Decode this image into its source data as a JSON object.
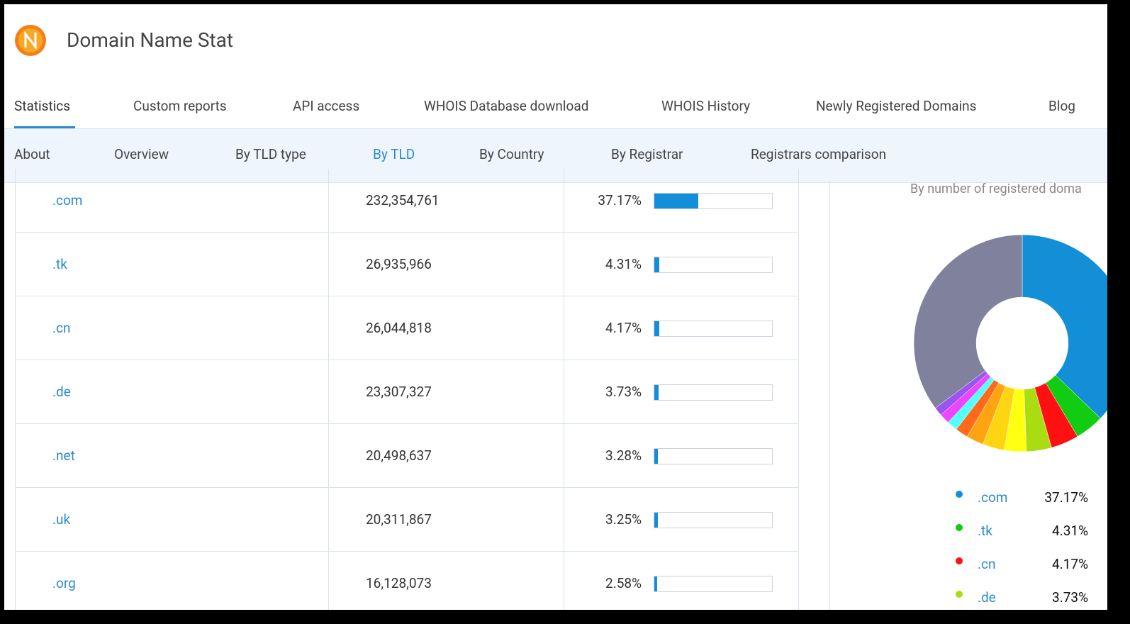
{
  "header": {
    "title": "Domain Name Stat"
  },
  "nav": [
    {
      "label": "Statistics",
      "active": true
    },
    {
      "label": "Custom reports"
    },
    {
      "label": "API access"
    },
    {
      "label": "WHOIS Database download"
    },
    {
      "label": "WHOIS History"
    },
    {
      "label": "Newly Registered Domains"
    },
    {
      "label": "Blog"
    }
  ],
  "subnav": [
    {
      "label": "About"
    },
    {
      "label": "Overview"
    },
    {
      "label": "By TLD type"
    },
    {
      "label": "By TLD",
      "active": true
    },
    {
      "label": "By Country"
    },
    {
      "label": "By Registrar"
    },
    {
      "label": "Registrars comparison"
    }
  ],
  "table": {
    "rows": [
      {
        "tld": ".com",
        "count": "232,354,761",
        "percent": {
          "value": 37.17,
          "label": "37.17%"
        }
      },
      {
        "tld": ".tk",
        "count": "26,935,966",
        "percent": {
          "value": 4.31,
          "label": "4.31%"
        }
      },
      {
        "tld": ".cn",
        "count": "26,044,818",
        "percent": {
          "value": 4.17,
          "label": "4.17%"
        }
      },
      {
        "tld": ".de",
        "count": "23,307,327",
        "percent": {
          "value": 3.73,
          "label": "3.73%"
        }
      },
      {
        "tld": ".net",
        "count": "20,498,637",
        "percent": {
          "value": 3.28,
          "label": "3.28%"
        }
      },
      {
        "tld": ".uk",
        "count": "20,311,867",
        "percent": {
          "value": 3.25,
          "label": "3.25%"
        }
      },
      {
        "tld": ".org",
        "count": "16,128,073",
        "percent": {
          "value": 2.58,
          "label": "2.58%"
        }
      }
    ]
  },
  "chart_data": {
    "type": "pie",
    "donut": true,
    "subtitle": "By number of registered doma",
    "categories": [
      ".com",
      ".tk",
      ".cn",
      ".de",
      null,
      null,
      null,
      null,
      null,
      null,
      null,
      null
    ],
    "values": [
      37.17,
      4.31,
      4.17,
      3.73,
      3.28,
      3.25,
      2.58,
      1.9,
      1.6,
      1.5,
      1.3,
      35.2
    ],
    "value_labels": [
      "37.17%",
      "4.31%",
      "4.17%",
      "3.73%",
      null,
      null,
      null,
      null,
      null,
      null,
      null,
      null
    ],
    "colors": [
      "#128fd6",
      "#11cc11",
      "#ff1111",
      "#aadd11",
      "#ffff11",
      "#ffd411",
      "#ffa411",
      "#ff6a1a",
      "#55ffff",
      "#ee44ff",
      "#9955ee",
      "#80819c"
    ]
  }
}
